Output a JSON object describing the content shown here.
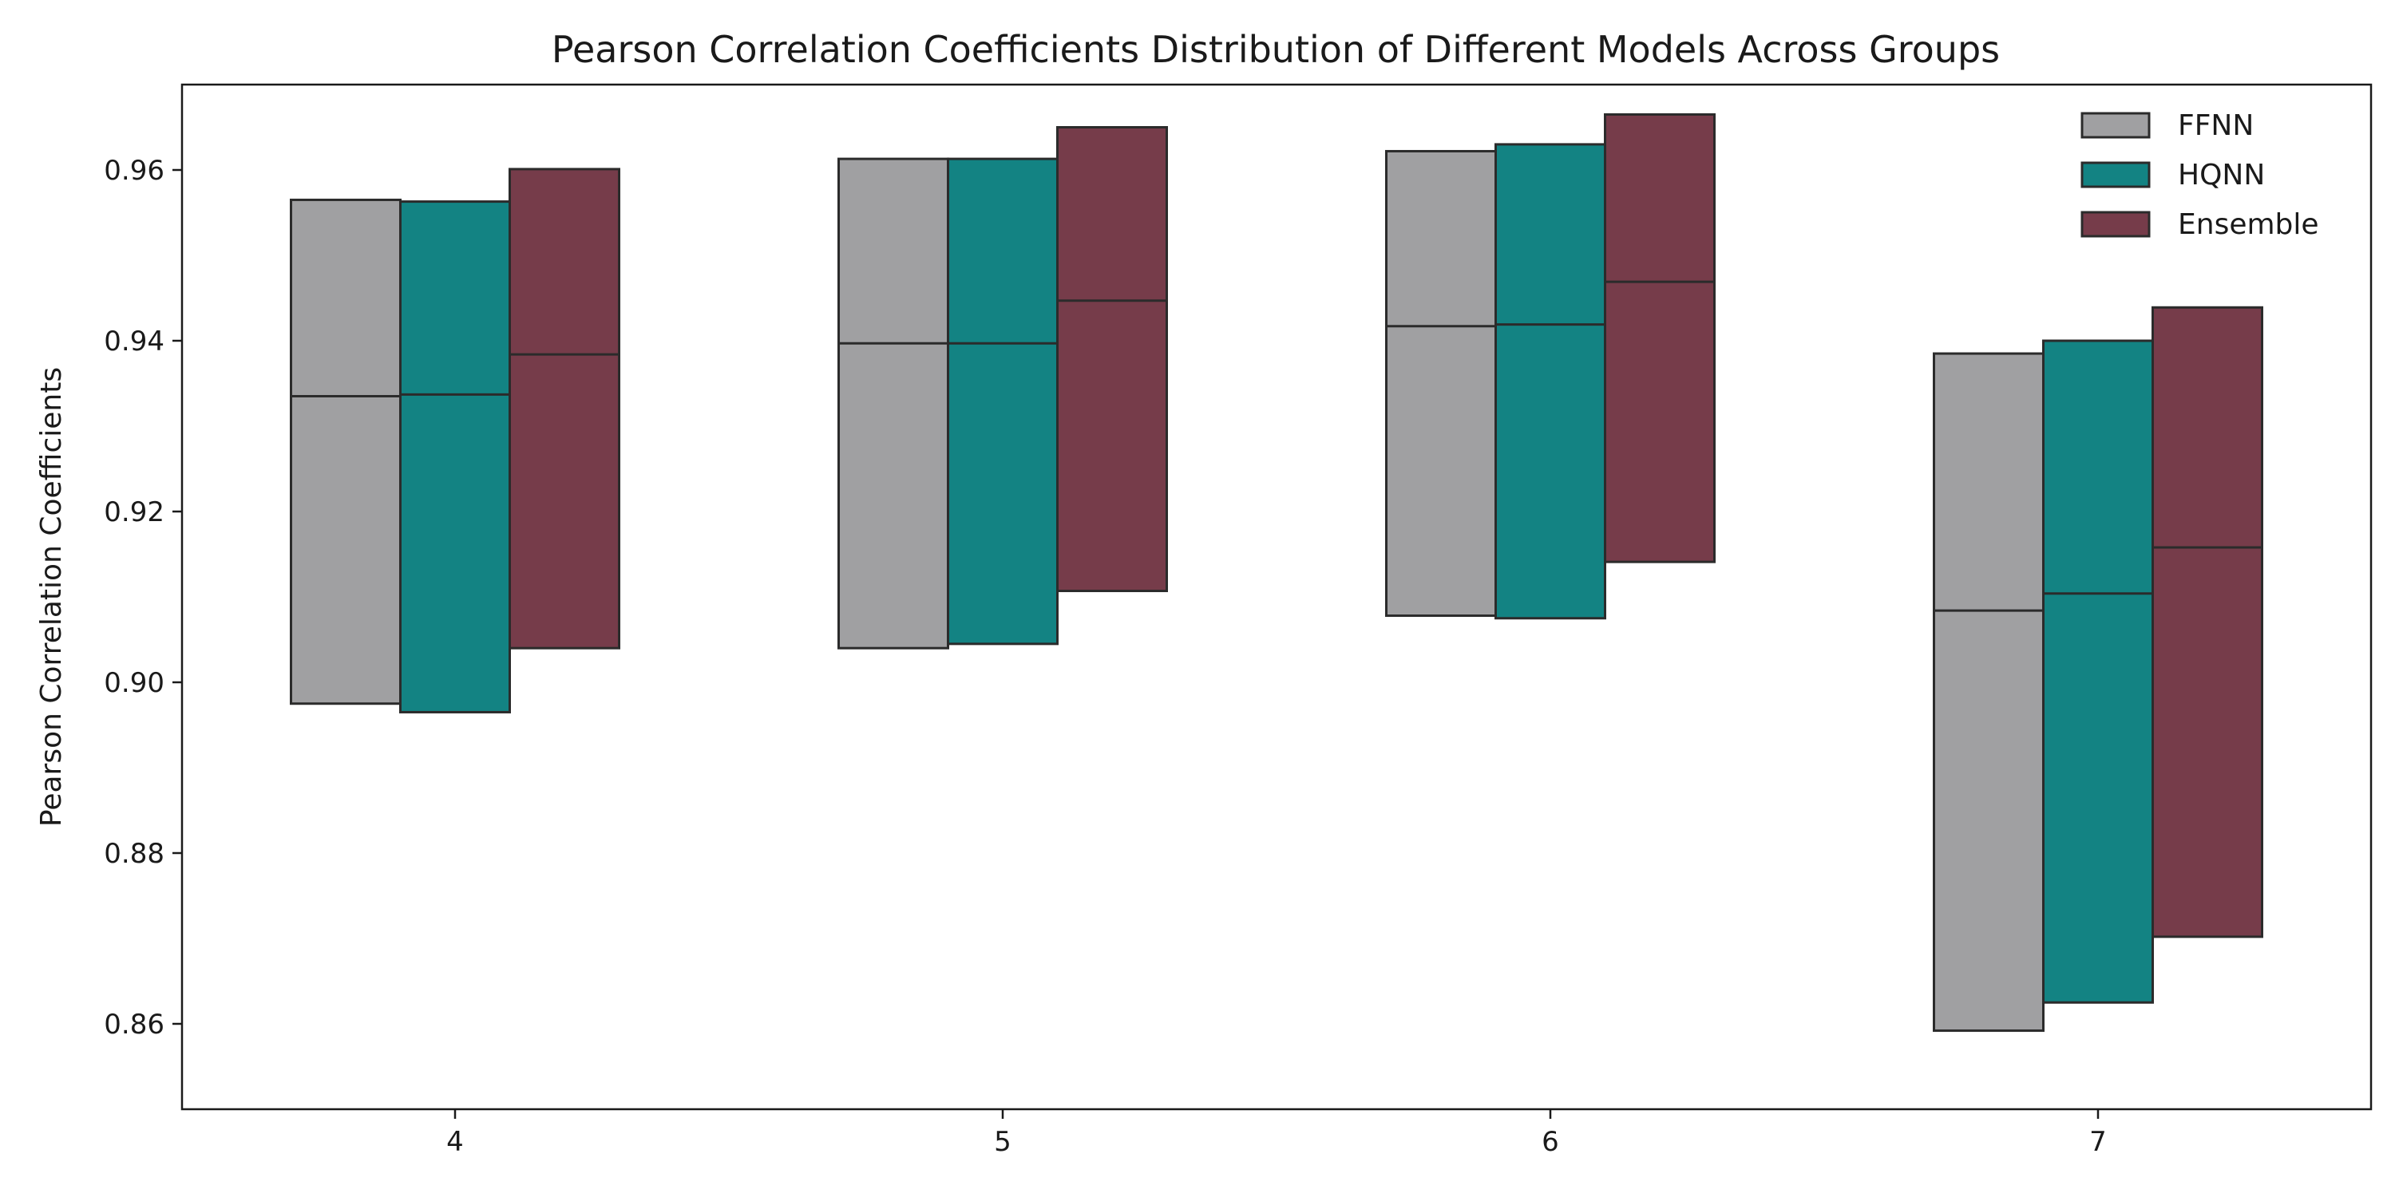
{
  "chart_data": {
    "type": "box",
    "title": "Pearson Correlation Coefficients Distribution of Different Models Across Groups",
    "xlabel": "",
    "ylabel": "Pearson Correlation Coefficients",
    "ylim": [
      0.85,
      0.97
    ],
    "yticks": [
      0.86,
      0.88,
      0.9,
      0.92,
      0.94,
      0.96
    ],
    "ytick_labels": [
      "0.86",
      "0.88",
      "0.90",
      "0.92",
      "0.94",
      "0.96"
    ],
    "categories": [
      "4",
      "5",
      "6",
      "7"
    ],
    "grid": false,
    "legend_position": "top-right",
    "series": [
      {
        "name": "FFNN",
        "color": "#a0a0a2",
        "boxes": [
          {
            "low": 0.8975,
            "median": 0.9335,
            "high": 0.9565
          },
          {
            "low": 0.904,
            "median": 0.9397,
            "high": 0.9613
          },
          {
            "low": 0.9078,
            "median": 0.9417,
            "high": 0.9622
          },
          {
            "low": 0.8592,
            "median": 0.9084,
            "high": 0.9385
          }
        ]
      },
      {
        "name": "HQNN",
        "color": "#138383",
        "boxes": [
          {
            "low": 0.8965,
            "median": 0.9337,
            "high": 0.9563
          },
          {
            "low": 0.9045,
            "median": 0.9397,
            "high": 0.9613
          },
          {
            "low": 0.9075,
            "median": 0.9419,
            "high": 0.963
          },
          {
            "low": 0.8625,
            "median": 0.9104,
            "high": 0.94
          }
        ]
      },
      {
        "name": "Ensemble",
        "color": "#763c4a",
        "boxes": [
          {
            "low": 0.904,
            "median": 0.9384,
            "high": 0.9601
          },
          {
            "low": 0.9107,
            "median": 0.9447,
            "high": 0.965
          },
          {
            "low": 0.9141,
            "median": 0.9469,
            "high": 0.9665
          },
          {
            "low": 0.8702,
            "median": 0.9158,
            "high": 0.9439
          }
        ]
      }
    ]
  }
}
